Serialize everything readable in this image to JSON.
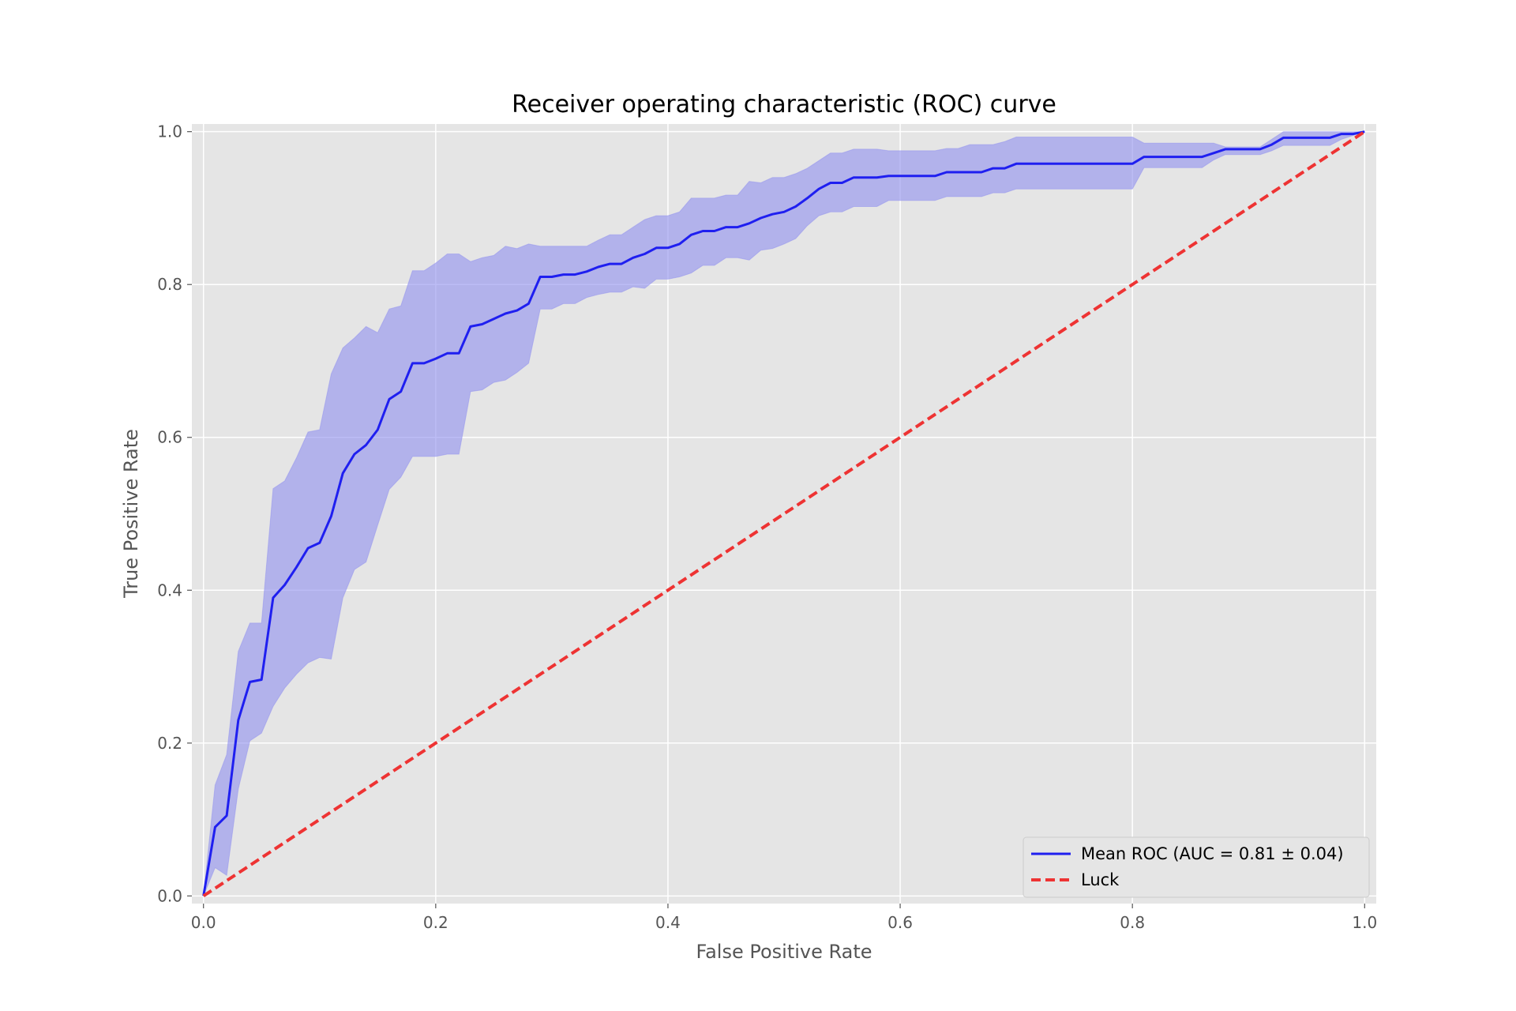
{
  "chart_data": {
    "type": "line",
    "title": "Receiver operating characteristic (ROC) curve",
    "xlabel": "False Positive Rate",
    "ylabel": "True Positive Rate",
    "xlim": [
      -0.01,
      1.01
    ],
    "ylim": [
      -0.01,
      1.01
    ],
    "xticks": [
      0.0,
      0.2,
      0.4,
      0.6,
      0.8,
      1.0
    ],
    "yticks": [
      0.0,
      0.2,
      0.4,
      0.6,
      0.8,
      1.0
    ],
    "tick_labels_x": [
      "0.0",
      "0.2",
      "0.4",
      "0.6",
      "0.8",
      "1.0"
    ],
    "tick_labels_y": [
      "0.0",
      "0.2",
      "0.4",
      "0.6",
      "0.8",
      "1.0"
    ],
    "grid": true,
    "legend_position": "lower-right",
    "colors": {
      "background": "#e5e5e5",
      "grid": "#ffffff",
      "mean_roc": "#1f1ff0",
      "band": "#8f8fef",
      "luck": "#ee3333"
    },
    "series": [
      {
        "name": "Mean ROC (AUC = 0.81 ± 0.04)",
        "style": "solid",
        "x": [
          0.0,
          0.01,
          0.02,
          0.03,
          0.04,
          0.05,
          0.06,
          0.07,
          0.08,
          0.09,
          0.1,
          0.11,
          0.12,
          0.13,
          0.14,
          0.15,
          0.16,
          0.17,
          0.18,
          0.19,
          0.2,
          0.21,
          0.22,
          0.23,
          0.24,
          0.25,
          0.26,
          0.27,
          0.28,
          0.29,
          0.3,
          0.31,
          0.32,
          0.33,
          0.34,
          0.35,
          0.36,
          0.37,
          0.38,
          0.39,
          0.4,
          0.41,
          0.42,
          0.43,
          0.44,
          0.45,
          0.46,
          0.47,
          0.48,
          0.49,
          0.5,
          0.51,
          0.52,
          0.53,
          0.54,
          0.55,
          0.56,
          0.57,
          0.58,
          0.59,
          0.6,
          0.61,
          0.62,
          0.63,
          0.64,
          0.65,
          0.66,
          0.67,
          0.68,
          0.69,
          0.7,
          0.75,
          0.8,
          0.81,
          0.86,
          0.87,
          0.88,
          0.91,
          0.92,
          0.93,
          0.97,
          0.98,
          0.99,
          1.0
        ],
        "y": [
          0.0,
          0.09,
          0.105,
          0.23,
          0.28,
          0.283,
          0.39,
          0.407,
          0.43,
          0.455,
          0.462,
          0.497,
          0.553,
          0.578,
          0.59,
          0.61,
          0.65,
          0.66,
          0.697,
          0.697,
          0.703,
          0.71,
          0.71,
          0.745,
          0.748,
          0.755,
          0.762,
          0.766,
          0.775,
          0.81,
          0.81,
          0.813,
          0.813,
          0.817,
          0.823,
          0.827,
          0.827,
          0.835,
          0.84,
          0.848,
          0.848,
          0.853,
          0.865,
          0.87,
          0.87,
          0.875,
          0.875,
          0.88,
          0.887,
          0.892,
          0.895,
          0.902,
          0.913,
          0.925,
          0.933,
          0.933,
          0.94,
          0.94,
          0.94,
          0.942,
          0.942,
          0.942,
          0.942,
          0.942,
          0.947,
          0.947,
          0.947,
          0.947,
          0.952,
          0.952,
          0.958,
          0.958,
          0.958,
          0.967,
          0.967,
          0.972,
          0.977,
          0.977,
          0.983,
          0.992,
          0.992,
          0.997,
          0.997,
          1.0
        ],
        "upper": [
          0.0,
          0.145,
          0.185,
          0.32,
          0.357,
          0.357,
          0.533,
          0.543,
          0.573,
          0.607,
          0.61,
          0.683,
          0.717,
          0.73,
          0.745,
          0.737,
          0.768,
          0.772,
          0.818,
          0.818,
          0.828,
          0.84,
          0.84,
          0.83,
          0.835,
          0.838,
          0.85,
          0.847,
          0.853,
          0.85,
          0.85,
          0.85,
          0.85,
          0.85,
          0.858,
          0.865,
          0.865,
          0.875,
          0.885,
          0.89,
          0.89,
          0.895,
          0.913,
          0.913,
          0.913,
          0.917,
          0.917,
          0.935,
          0.933,
          0.94,
          0.94,
          0.945,
          0.952,
          0.962,
          0.972,
          0.972,
          0.977,
          0.977,
          0.977,
          0.975,
          0.975,
          0.975,
          0.975,
          0.975,
          0.978,
          0.978,
          0.983,
          0.983,
          0.983,
          0.987,
          0.993,
          0.993,
          0.993,
          0.985,
          0.985,
          0.985,
          0.98,
          0.98,
          0.99,
          1.0,
          1.0,
          1.0,
          1.0,
          1.0
        ],
        "lower": [
          0.0,
          0.037,
          0.027,
          0.14,
          0.203,
          0.213,
          0.248,
          0.272,
          0.29,
          0.305,
          0.312,
          0.31,
          0.39,
          0.427,
          0.437,
          0.485,
          0.532,
          0.548,
          0.575,
          0.575,
          0.575,
          0.578,
          0.578,
          0.66,
          0.662,
          0.672,
          0.675,
          0.685,
          0.697,
          0.768,
          0.768,
          0.775,
          0.775,
          0.783,
          0.787,
          0.79,
          0.79,
          0.797,
          0.795,
          0.807,
          0.807,
          0.81,
          0.815,
          0.825,
          0.825,
          0.835,
          0.835,
          0.832,
          0.845,
          0.847,
          0.853,
          0.86,
          0.877,
          0.89,
          0.895,
          0.895,
          0.902,
          0.902,
          0.902,
          0.91,
          0.91,
          0.91,
          0.91,
          0.91,
          0.915,
          0.915,
          0.915,
          0.915,
          0.92,
          0.92,
          0.925,
          0.925,
          0.925,
          0.953,
          0.953,
          0.963,
          0.97,
          0.97,
          0.975,
          0.982,
          0.982,
          0.99,
          0.995,
          1.0
        ]
      },
      {
        "name": "Luck",
        "style": "dashed",
        "x": [
          0.0,
          1.0
        ],
        "y": [
          0.0,
          1.0
        ]
      }
    ]
  }
}
